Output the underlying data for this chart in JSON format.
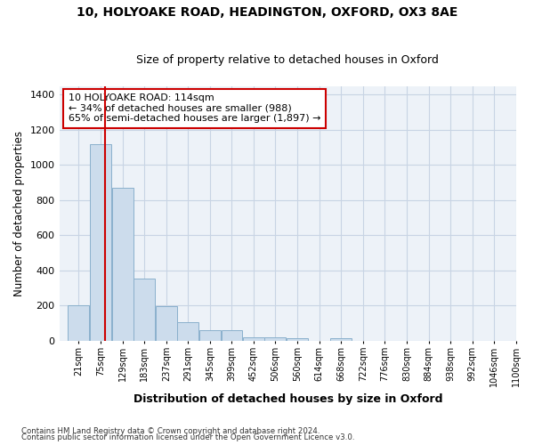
{
  "title1": "10, HOLYOAKE ROAD, HEADINGTON, OXFORD, OX3 8AE",
  "title2": "Size of property relative to detached houses in Oxford",
  "xlabel": "Distribution of detached houses by size in Oxford",
  "ylabel": "Number of detached properties",
  "footnote1": "Contains HM Land Registry data © Crown copyright and database right 2024.",
  "footnote2": "Contains public sector information licensed under the Open Government Licence v3.0.",
  "annotation_line1": "10 HOLYOAKE ROAD: 114sqm",
  "annotation_line2": "← 34% of detached houses are smaller (988)",
  "annotation_line3": "65% of semi-detached houses are larger (1,897) →",
  "bar_edges": [
    21,
    75,
    129,
    183,
    237,
    291,
    345,
    399,
    452,
    506,
    560,
    614,
    668,
    722,
    776,
    830,
    884,
    938,
    992,
    1046,
    1100
  ],
  "bar_heights": [
    200,
    1120,
    870,
    355,
    195,
    105,
    60,
    60,
    20,
    20,
    15,
    0,
    15,
    0,
    0,
    0,
    0,
    0,
    0,
    0,
    0
  ],
  "bar_color": "#ccdcec",
  "bar_edgecolor": "#8ab0cc",
  "vline_x": 114,
  "vline_color": "#cc0000",
  "grid_color": "#c8d4e4",
  "bg_color": "#edf2f8",
  "annotation_box_color": "#cc0000",
  "ylim": [
    0,
    1450
  ],
  "xlim": [
    0,
    1127
  ],
  "yticks": [
    0,
    200,
    400,
    600,
    800,
    1000,
    1200,
    1400
  ],
  "tick_labels": [
    "21sqm",
    "75sqm",
    "129sqm",
    "183sqm",
    "237sqm",
    "291sqm",
    "345sqm",
    "399sqm",
    "452sqm",
    "506sqm",
    "560sqm",
    "614sqm",
    "668sqm",
    "722sqm",
    "776sqm",
    "830sqm",
    "884sqm",
    "938sqm",
    "992sqm",
    "1046sqm",
    "1100sqm"
  ]
}
